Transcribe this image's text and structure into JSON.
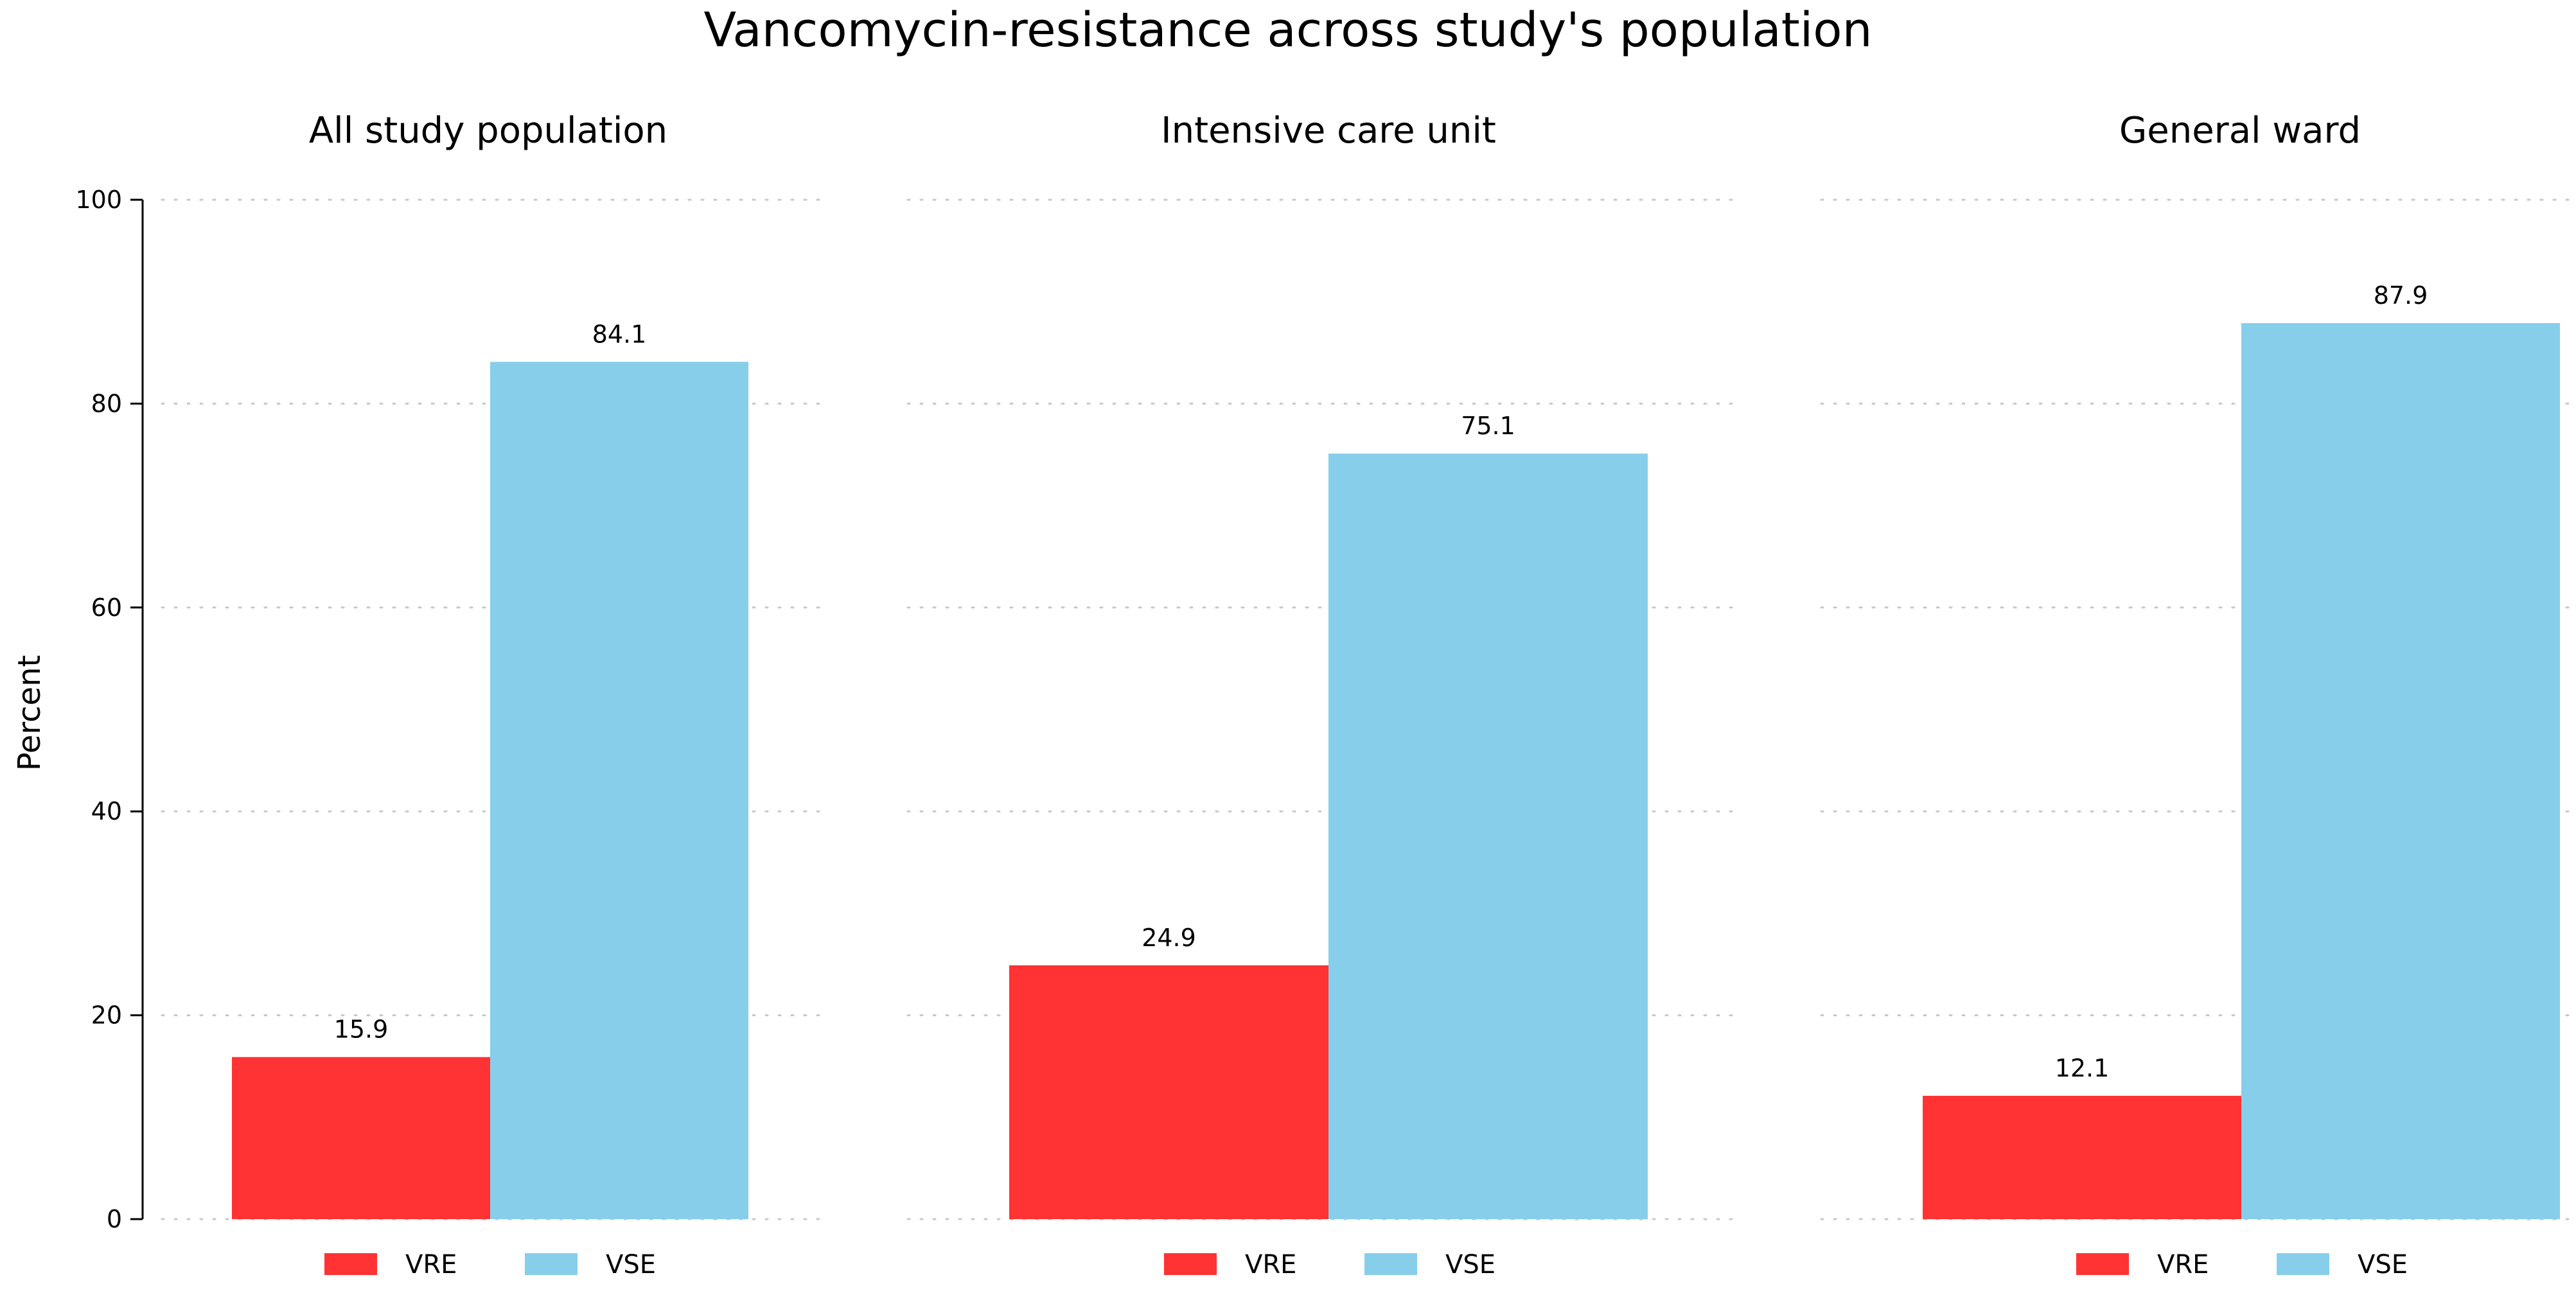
{
  "chart_data": {
    "type": "bar",
    "title": "Vancomycin-resistance across study's population",
    "ylabel": "Percent",
    "xlabel": "",
    "ylim": [
      0,
      100
    ],
    "yticks": [
      0,
      20,
      40,
      60,
      80,
      100
    ],
    "grid": true,
    "legend_position": "bottom",
    "series_colors": {
      "VRE": "#ff3333",
      "VSE": "#87ceeb"
    },
    "panels": [
      {
        "title": "All study population",
        "categories": [
          "VRE",
          "VSE"
        ],
        "values": [
          15.9,
          84.1
        ],
        "labels": [
          "15.9",
          "84.1"
        ]
      },
      {
        "title": "Intensive care unit",
        "categories": [
          "VRE",
          "VSE"
        ],
        "values": [
          24.9,
          75.1
        ],
        "labels": [
          "24.9",
          "75.1"
        ]
      },
      {
        "title": "General ward",
        "categories": [
          "VRE",
          "VSE"
        ],
        "values": [
          12.1,
          87.9
        ],
        "labels": [
          "12.1",
          "87.9"
        ]
      }
    ],
    "legend": [
      "VRE",
      "VSE"
    ]
  }
}
